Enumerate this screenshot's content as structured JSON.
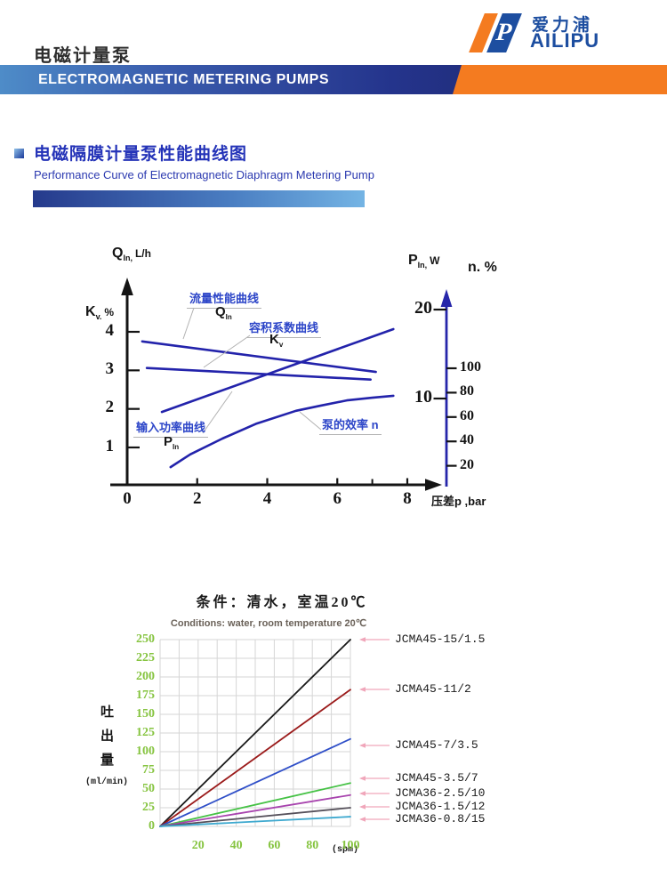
{
  "header": {
    "page_title": "电磁计量泵",
    "banner_text": "ELECTROMAGNETIC METERING PUMPS",
    "logo": {
      "cn": "爱力浦",
      "en": "AILIPU",
      "letter": "P",
      "orange": "#f47b20",
      "blue": "#1d4ea0"
    }
  },
  "section": {
    "title_cn": "电磁隔膜计量泵性能曲线图",
    "title_en": "Performance Curve of Electromagnetic Diaphragm Metering Pump"
  },
  "chart_data": [
    {
      "type": "line",
      "name": "performance-curve-diagram",
      "x_axis": {
        "title": "压差p ,bar",
        "ticks": [
          0,
          2,
          4,
          6,
          8
        ],
        "minor_tick": 7,
        "range": [
          0,
          9
        ]
      },
      "left_axis": {
        "sym": "Q",
        "sub": "In,",
        "unit": "L/h",
        "sym2": "K",
        "sub2": "v.",
        "unit2": "%",
        "ticks": [
          4,
          3,
          2,
          1
        ]
      },
      "right_axis": {
        "sym": "P",
        "sub": "In,",
        "unit": "W",
        "n_label": "n. %",
        "p_ticks": [
          20,
          10
        ],
        "n_ticks": [
          100,
          80,
          60,
          40,
          20
        ]
      },
      "curve_color": "#2323ab",
      "series": [
        {
          "id": "qin",
          "label": "流量性能曲线",
          "sym": "Q",
          "sym_sub": "In",
          "points": [
            [
              0.43,
              3.75
            ],
            [
              7.1,
              2.96
            ]
          ]
        },
        {
          "id": "kv",
          "label": "容积系数曲线",
          "sym": "K",
          "sym_sub": "v",
          "points": [
            [
              0.56,
              3.06
            ],
            [
              6.95,
              2.76
            ]
          ]
        },
        {
          "id": "pin",
          "label": "输入功率曲线",
          "sym": "P",
          "sym_sub": "In",
          "points": [
            [
              0.99,
              1.92
            ],
            [
              7.6,
              4.07
            ]
          ]
        },
        {
          "id": "n",
          "label": "泵的效率 n",
          "points": [
            [
              1.24,
              0.49
            ],
            [
              1.8,
              0.82
            ],
            [
              2.72,
              1.23
            ],
            [
              3.7,
              1.62
            ],
            [
              4.82,
              1.95
            ],
            [
              5.5,
              2.08
            ],
            [
              6.27,
              2.22
            ],
            [
              7.0,
              2.29
            ],
            [
              7.6,
              2.34
            ]
          ]
        }
      ]
    },
    {
      "type": "line",
      "name": "flow-vs-stroke-frequency",
      "title": "条件：清水，室温20℃",
      "subtitle": "Conditions: water, room temperature 20℃",
      "ylabel": "吐出量",
      "ylabel_unit": "(ml/min)",
      "xlabel_unit": "(spm)",
      "x_ticks": [
        20,
        40,
        60,
        80,
        100
      ],
      "y_ticks": [
        0,
        25,
        50,
        75,
        100,
        125,
        150,
        175,
        200,
        225,
        250
      ],
      "xlim": [
        0,
        100
      ],
      "ylim": [
        0,
        250
      ],
      "grid": true,
      "x_grid_step": 10,
      "y_grid_step": 25,
      "legend_leader_color": "#f0a6ba",
      "tick_color": "#86c440",
      "series": [
        {
          "label": "JCMA45-15/1.5",
          "color": "#1a1a1a",
          "x": [
            0,
            100
          ],
          "y": [
            0,
            250
          ]
        },
        {
          "label": "JCMA45-11/2",
          "color": "#9b1b1b",
          "x": [
            0,
            100
          ],
          "y": [
            0,
            183
          ]
        },
        {
          "label": "JCMA45-7/3.5",
          "color": "#2f4fc8",
          "x": [
            0,
            100
          ],
          "y": [
            0,
            117
          ]
        },
        {
          "label": "JCMA45-3.5/7",
          "color": "#46c246",
          "x": [
            0,
            100
          ],
          "y": [
            0,
            58
          ]
        },
        {
          "label": "JCMA36-2.5/10",
          "color": "#a844ae",
          "x": [
            0,
            100
          ],
          "y": [
            0,
            42
          ]
        },
        {
          "label": "JCMA36-1.5/12",
          "color": "#55505a",
          "x": [
            0,
            100
          ],
          "y": [
            0,
            25
          ]
        },
        {
          "label": "JCMA36-0.8/15",
          "color": "#3fa9cf",
          "x": [
            0,
            100
          ],
          "y": [
            0,
            13
          ]
        }
      ]
    }
  ]
}
